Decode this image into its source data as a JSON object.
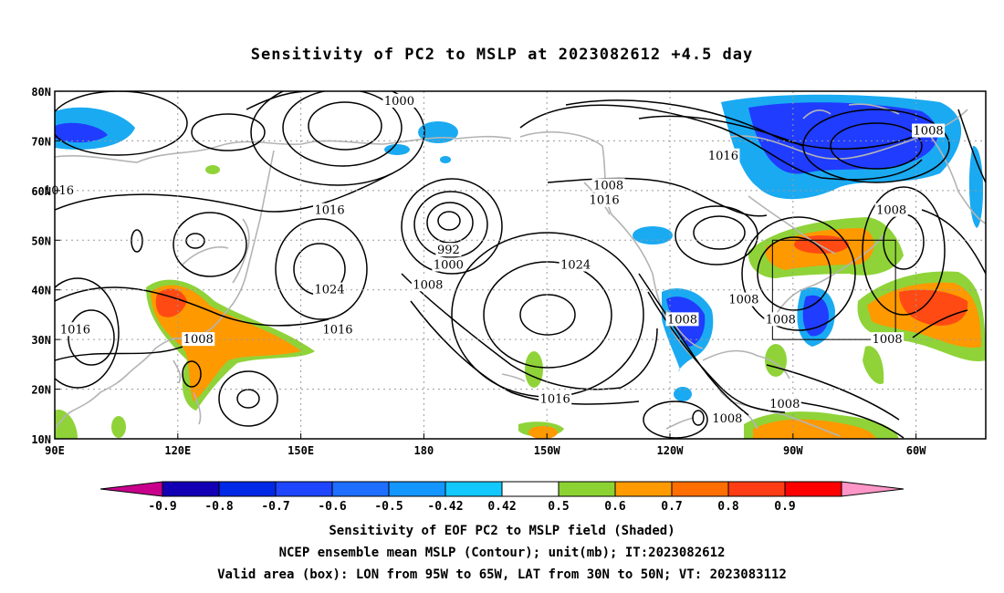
{
  "title": "Sensitivity of PC2 to MSLP at 2023082612 +4.5 day",
  "map": {
    "lat_ticks": [
      "80N",
      "70N",
      "60N",
      "50N",
      "40N",
      "30N",
      "20N",
      "10N"
    ],
    "lon_ticks": [
      "90E",
      "120E",
      "150E",
      "180",
      "150W",
      "120W",
      "90W",
      "60W"
    ],
    "lon_range": [
      90,
      317
    ],
    "lat_range": [
      10,
      80
    ],
    "valid_box": {
      "lon": [
        265,
        295
      ],
      "lat": [
        30,
        50
      ]
    },
    "contour_labels": [
      {
        "text": "1000",
        "lon": 174,
        "lat": 78
      },
      {
        "text": "1016",
        "lon": 91,
        "lat": 60
      },
      {
        "text": "1016",
        "lon": 157,
        "lat": 56
      },
      {
        "text": "992",
        "lon": 186,
        "lat": 48
      },
      {
        "text": "1000",
        "lon": 186,
        "lat": 45
      },
      {
        "text": "1024",
        "lon": 157,
        "lat": 40
      },
      {
        "text": "1008",
        "lon": 181,
        "lat": 41
      },
      {
        "text": "1016",
        "lon": 159,
        "lat": 32
      },
      {
        "text": "1016",
        "lon": 95,
        "lat": 32
      },
      {
        "text": "1008",
        "lon": 125,
        "lat": 30
      },
      {
        "text": "1008",
        "lon": 225,
        "lat": 61
      },
      {
        "text": "1016",
        "lon": 224,
        "lat": 58
      },
      {
        "text": "1024",
        "lon": 217,
        "lat": 45
      },
      {
        "text": "1016",
        "lon": 212,
        "lat": 18
      },
      {
        "text": "1016",
        "lon": 253,
        "lat": 67
      },
      {
        "text": "1008",
        "lon": 303,
        "lat": 72
      },
      {
        "text": "1008",
        "lon": 294,
        "lat": 56
      },
      {
        "text": "1008",
        "lon": 258,
        "lat": 38
      },
      {
        "text": "1008",
        "lon": 243,
        "lat": 34
      },
      {
        "text": "1008",
        "lon": 267,
        "lat": 34
      },
      {
        "text": "1008",
        "lon": 293,
        "lat": 30
      },
      {
        "text": "1008",
        "lon": 268,
        "lat": 17
      },
      {
        "text": "1008",
        "lon": 254,
        "lat": 14
      }
    ],
    "colors": {
      "neg_strong": "#1f3cff",
      "neg_light": "#1aaaf2",
      "pos_green": "#8fd339",
      "pos_orange": "#ff9900",
      "pos_red": "#ff4a14",
      "coast": "#b4b4b4",
      "grid": "#9a9a9a"
    }
  },
  "colorbar": {
    "labels": [
      "-0.9",
      "-0.8",
      "-0.7",
      "-0.6",
      "-0.5",
      "-0.42",
      "0.42",
      "0.5",
      "0.6",
      "0.7",
      "0.8",
      "0.9"
    ],
    "colors": [
      "#c8008c",
      "#1400b4",
      "#0028e6",
      "#1e46ff",
      "#1e6eff",
      "#1496ff",
      "#12c8ff",
      "#ffffff",
      "#8cd232",
      "#ff9b00",
      "#ff6e00",
      "#ff3c14",
      "#ff0000",
      "#ff96c8"
    ]
  },
  "captions": [
    "Sensitivity of EOF PC2 to MSLP field (Shaded)",
    "NCEP ensemble mean MSLP (Contour); unit(mb); IT:2023082612",
    "Valid area (box): LON from 95W to 65W, LAT from 30N to 50N; VT: 2023083112"
  ]
}
